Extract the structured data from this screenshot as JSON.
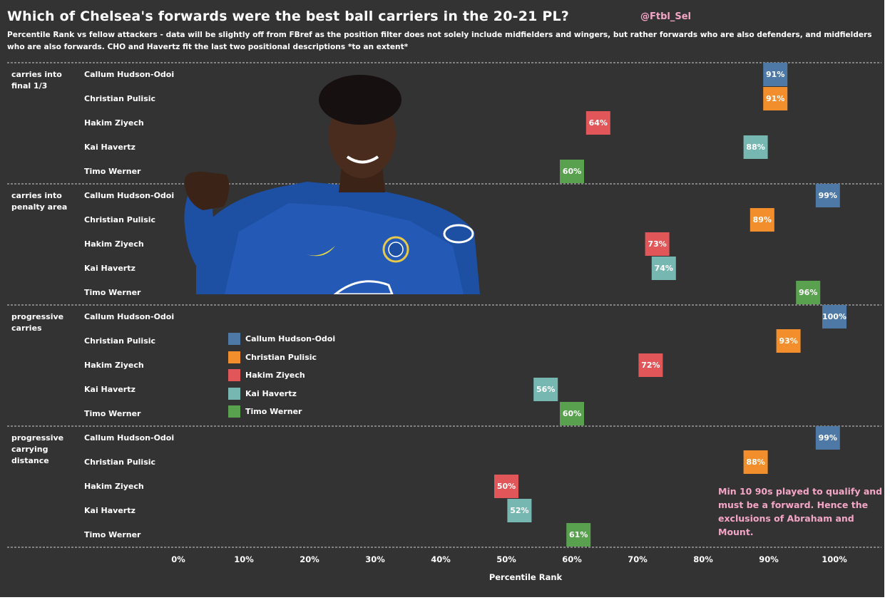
{
  "header": {
    "title": "Which of Chelsea's forwards were the best ball carriers in the 20-21 PL?",
    "handle": "@Ftbl_Sel",
    "subtitle": "Percentile Rank vs fellow attackers - data will be slightly off from FBref as the position filter does not solely include midfielders and wingers, but rather forwards who are also defenders, and midfielders who are also forwards. CHO and Havertz fit the last two positional descriptions *to an extent*"
  },
  "note": "Min 10 90s played to qualify and must be a forward. Hence the exclusions of Abraham and Mount.",
  "chart_data": {
    "type": "scatter",
    "title": "Which of Chelsea's forwards were the best ball carriers in the 20-21 PL?",
    "xlabel": "Percentile Rank",
    "xlim": [
      0,
      100
    ],
    "x_ticks": [
      "0%",
      "10%",
      "20%",
      "30%",
      "40%",
      "50%",
      "60%",
      "70%",
      "80%",
      "90%",
      "100%"
    ],
    "players": [
      "Callum Hudson-Odoi",
      "Christian Pulisic",
      "Hakim Ziyech",
      "Kai Havertz",
      "Timo Werner"
    ],
    "colors": {
      "Callum Hudson-Odoi": "#4e79a7",
      "Christian Pulisic": "#f28e2b",
      "Hakim Ziyech": "#e15759",
      "Kai Havertz": "#76b7b2",
      "Timo Werner": "#59a14f"
    },
    "groups": [
      {
        "metric": [
          "carries into",
          "final 1/3"
        ],
        "values": [
          91,
          91,
          64,
          88,
          60
        ]
      },
      {
        "metric": [
          "carries into",
          "penalty area"
        ],
        "values": [
          99,
          89,
          73,
          74,
          96
        ]
      },
      {
        "metric": [
          "progressive",
          "carries"
        ],
        "values": [
          100,
          93,
          72,
          56,
          60
        ]
      },
      {
        "metric": [
          "progressive",
          "carrying",
          "distance"
        ],
        "values": [
          99,
          88,
          50,
          52,
          61
        ]
      }
    ],
    "legend_position": "center-left",
    "grid": false
  }
}
